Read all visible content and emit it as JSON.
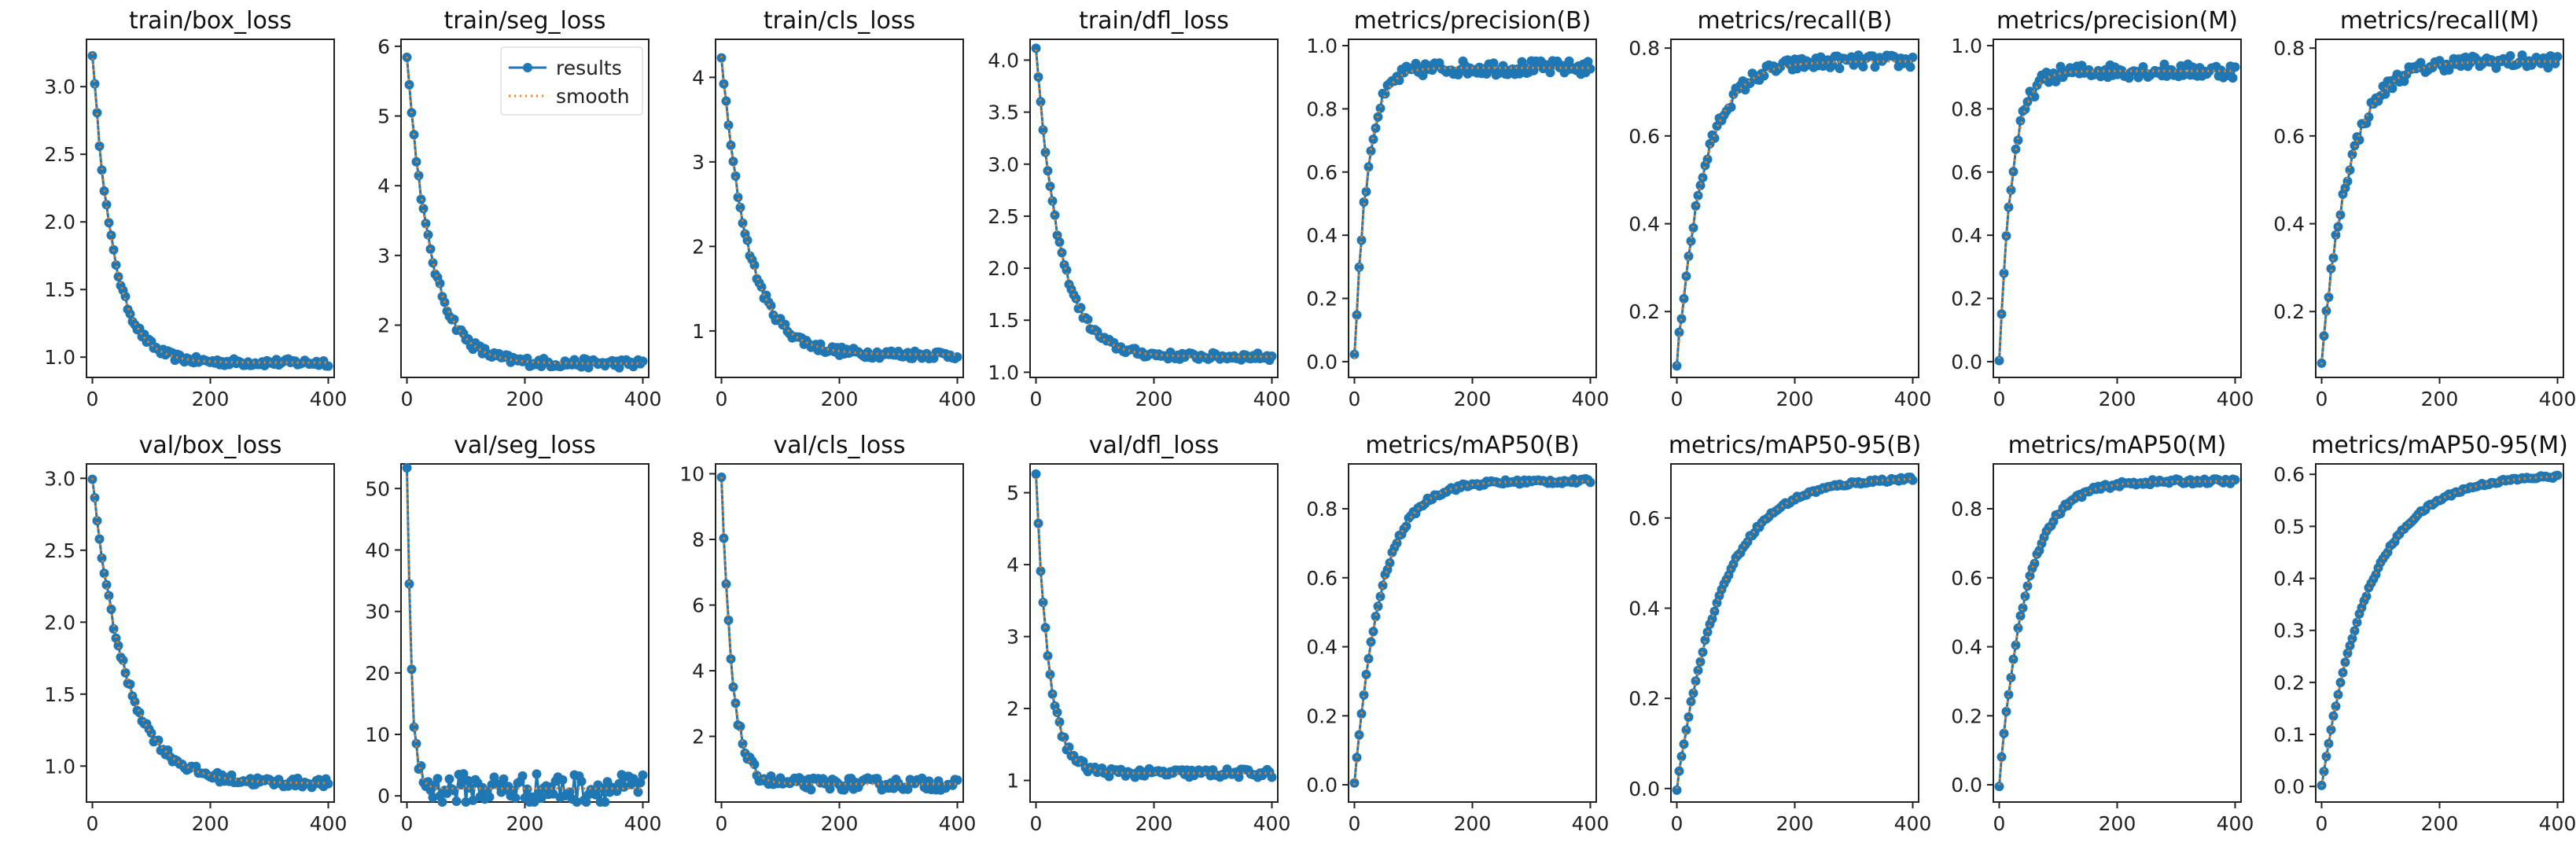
{
  "legend": {
    "results_label": "results",
    "smooth_label": "smooth"
  },
  "colors": {
    "results": "#1f77b4",
    "smooth": "#ff7f0e",
    "frame": "#222222"
  },
  "chart_data": [
    {
      "id": "train_box_loss",
      "type": "line",
      "title": "train/box_loss",
      "xlim": [
        -10,
        410
      ],
      "ylim": [
        0.85,
        3.35
      ],
      "xticks": [
        0,
        200,
        400
      ],
      "yticks": [
        1.0,
        1.5,
        2.0,
        2.5,
        3.0
      ],
      "curve": {
        "start": 3.25,
        "end": 0.96,
        "shape": "decay",
        "k": 35,
        "noise": 0.012
      },
      "legend": false
    },
    {
      "id": "train_seg_loss",
      "type": "line",
      "title": "train/seg_loss",
      "xlim": [
        -10,
        410
      ],
      "ylim": [
        1.25,
        6.1
      ],
      "xticks": [
        0,
        200,
        400
      ],
      "yticks": [
        2,
        3,
        4,
        5,
        6
      ],
      "curve": {
        "start": 5.85,
        "end": 1.45,
        "shape": "decay",
        "k": 40,
        "noise": 0.015
      },
      "legend": true
    },
    {
      "id": "train_cls_loss",
      "type": "line",
      "title": "train/cls_loss",
      "xlim": [
        -10,
        410
      ],
      "ylim": [
        0.45,
        4.45
      ],
      "xticks": [
        0,
        200,
        400
      ],
      "yticks": [
        1,
        2,
        3,
        4
      ],
      "curve": {
        "start": 4.25,
        "end": 0.72,
        "shape": "decay",
        "k": 45,
        "noise": 0.015
      },
      "legend": false
    },
    {
      "id": "train_dfl_loss",
      "type": "line",
      "title": "train/dfl_loss",
      "xlim": [
        -10,
        410
      ],
      "ylim": [
        0.95,
        4.2
      ],
      "xticks": [
        0,
        200,
        400
      ],
      "yticks": [
        1.0,
        1.5,
        2.0,
        2.5,
        3.0,
        3.5,
        4.0
      ],
      "curve": {
        "start": 4.1,
        "end": 1.15,
        "shape": "decay",
        "k": 40,
        "noise": 0.012
      },
      "legend": false
    },
    {
      "id": "metrics_precision_B",
      "type": "line",
      "title": "metrics/precision(B)",
      "xlim": [
        -10,
        410
      ],
      "ylim": [
        -0.05,
        1.02
      ],
      "xticks": [
        0,
        200,
        400
      ],
      "yticks": [
        0.0,
        0.2,
        0.4,
        0.6,
        0.8,
        1.0
      ],
      "curve": {
        "start": 0.01,
        "end": 0.93,
        "shape": "rise",
        "k": 22,
        "noise": 0.025
      },
      "legend": false
    },
    {
      "id": "metrics_recall_B",
      "type": "line",
      "title": "metrics/recall(B)",
      "xlim": [
        -10,
        410
      ],
      "ylim": [
        0.05,
        0.82
      ],
      "xticks": [
        0,
        200,
        400
      ],
      "yticks": [
        0.2,
        0.4,
        0.6,
        0.8
      ],
      "curve": {
        "start": 0.08,
        "end": 0.77,
        "shape": "rise",
        "k": 45,
        "noise": 0.022
      },
      "legend": false
    },
    {
      "id": "metrics_precision_M",
      "type": "line",
      "title": "metrics/precision(M)",
      "xlim": [
        -10,
        410
      ],
      "ylim": [
        -0.05,
        1.02
      ],
      "xticks": [
        0,
        200,
        400
      ],
      "yticks": [
        0.0,
        0.2,
        0.4,
        0.6,
        0.8,
        1.0
      ],
      "curve": {
        "start": 0.01,
        "end": 0.92,
        "shape": "rise",
        "k": 22,
        "noise": 0.025
      },
      "legend": false
    },
    {
      "id": "metrics_recall_M",
      "type": "line",
      "title": "metrics/recall(M)",
      "xlim": [
        -10,
        410
      ],
      "ylim": [
        0.05,
        0.82
      ],
      "xticks": [
        0,
        200,
        400
      ],
      "yticks": [
        0.2,
        0.4,
        0.6,
        0.8
      ],
      "curve": {
        "start": 0.08,
        "end": 0.77,
        "shape": "rise",
        "k": 45,
        "noise": 0.022
      },
      "legend": false
    },
    {
      "id": "val_box_loss",
      "type": "line",
      "title": "val/box_loss",
      "xlim": [
        -10,
        410
      ],
      "ylim": [
        0.75,
        3.1
      ],
      "xticks": [
        0,
        200,
        400
      ],
      "yticks": [
        1.0,
        1.5,
        2.0,
        2.5,
        3.0
      ],
      "curve": {
        "start": 3.0,
        "end": 0.88,
        "shape": "decay",
        "k": 55,
        "noise": 0.015
      },
      "legend": false
    },
    {
      "id": "val_seg_loss",
      "type": "line",
      "title": "val/seg_loss",
      "xlim": [
        -10,
        410
      ],
      "ylim": [
        -1,
        54
      ],
      "xticks": [
        0,
        200,
        400
      ],
      "yticks": [
        0,
        10,
        20,
        30,
        40,
        50
      ],
      "curve": {
        "start": 52,
        "end": 1.2,
        "shape": "spike",
        "k": 8,
        "noise": 0.05
      },
      "legend": false
    },
    {
      "id": "val_cls_loss",
      "type": "line",
      "title": "val/cls_loss",
      "xlim": [
        -10,
        410
      ],
      "ylim": [
        0.0,
        10.3
      ],
      "xticks": [
        0,
        200,
        400
      ],
      "yticks": [
        2,
        4,
        6,
        8,
        10
      ],
      "curve": {
        "start": 9.9,
        "end": 0.55,
        "shape": "spike",
        "k": 18,
        "noise": 0.02
      },
      "legend": false
    },
    {
      "id": "val_dfl_loss",
      "type": "line",
      "title": "val/dfl_loss",
      "xlim": [
        -10,
        410
      ],
      "ylim": [
        0.7,
        5.4
      ],
      "xticks": [
        0,
        200,
        400
      ],
      "yticks": [
        1,
        2,
        3,
        4,
        5
      ],
      "curve": {
        "start": 5.2,
        "end": 1.1,
        "shape": "spike",
        "k": 22,
        "noise": 0.015
      },
      "legend": false
    },
    {
      "id": "metrics_mAP50_B",
      "type": "line",
      "title": "metrics/mAP50(B)",
      "xlim": [
        -10,
        410
      ],
      "ylim": [
        -0.05,
        0.93
      ],
      "xticks": [
        0,
        200,
        400
      ],
      "yticks": [
        0.0,
        0.2,
        0.4,
        0.6,
        0.8
      ],
      "curve": {
        "start": 0.0,
        "end": 0.88,
        "shape": "rise",
        "k": 45,
        "noise": 0.008
      },
      "legend": false
    },
    {
      "id": "metrics_mAP50_95_B",
      "type": "line",
      "title": "metrics/mAP50-95(B)",
      "xlim": [
        -10,
        410
      ],
      "ylim": [
        -0.03,
        0.72
      ],
      "xticks": [
        0,
        200,
        400
      ],
      "yticks": [
        0.0,
        0.2,
        0.4,
        0.6
      ],
      "curve": {
        "start": 0.0,
        "end": 0.69,
        "shape": "rise",
        "k": 75,
        "noise": 0.006
      },
      "legend": false
    },
    {
      "id": "metrics_mAP50_M",
      "type": "line",
      "title": "metrics/mAP50(M)",
      "xlim": [
        -10,
        410
      ],
      "ylim": [
        -0.05,
        0.93
      ],
      "xticks": [
        0,
        200,
        400
      ],
      "yticks": [
        0.0,
        0.2,
        0.4,
        0.6,
        0.8
      ],
      "curve": {
        "start": 0.0,
        "end": 0.88,
        "shape": "rise",
        "k": 45,
        "noise": 0.008
      },
      "legend": false
    },
    {
      "id": "metrics_mAP50_95_M",
      "type": "line",
      "title": "metrics/mAP50-95(M)",
      "xlim": [
        -10,
        410
      ],
      "ylim": [
        -0.03,
        0.62
      ],
      "xticks": [
        0,
        200,
        400
      ],
      "yticks": [
        0.0,
        0.1,
        0.2,
        0.3,
        0.4,
        0.5,
        0.6
      ],
      "curve": {
        "start": 0.0,
        "end": 0.6,
        "shape": "rise",
        "k": 80,
        "noise": 0.005
      },
      "legend": false
    }
  ]
}
